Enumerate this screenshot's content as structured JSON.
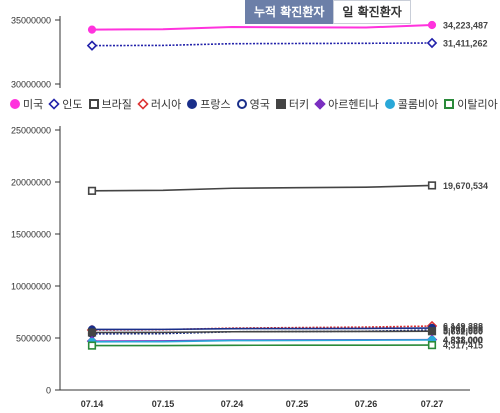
{
  "tabs": [
    {
      "label": "누적 확진환자",
      "active": true
    },
    {
      "label": "일 확진환자",
      "active": false
    }
  ],
  "chart_data": [
    {
      "type": "line",
      "categories": [
        "07.14",
        "07.15",
        "07.24",
        "07.25",
        "07.26",
        "07.27"
      ],
      "ylim": [
        25000000,
        35000000
      ],
      "yticks": [
        "35000000",
        "30000000"
      ],
      "series": [
        {
          "name": "미국",
          "color": "#ff33dd",
          "marker": "circle-filled",
          "values": [
            33500000,
            33560000,
            33900000,
            33850000,
            33820000,
            34223487
          ],
          "end_label": "34,223,487"
        },
        {
          "name": "인도",
          "color": "#2222aa",
          "marker": "diamond-open",
          "values": [
            31000000,
            31030000,
            31300000,
            31330000,
            31360000,
            31411262
          ],
          "end_label": "31,411,262"
        }
      ]
    },
    {
      "type": "line",
      "categories": [
        "07.14",
        "07.15",
        "07.24",
        "07.25",
        "07.26",
        "07.27"
      ],
      "ylim": [
        0,
        25000000
      ],
      "yticks": [
        "25000000",
        "20000000",
        "15000000",
        "10000000",
        "5000000",
        "0"
      ],
      "series": [
        {
          "name": "브라질",
          "color": "#444444",
          "marker": "square-open",
          "values": [
            19150000,
            19200000,
            19400000,
            19450000,
            19500000,
            19670534
          ],
          "end_label": "19,670,534"
        },
        {
          "name": "러시아",
          "color": "#dd3333",
          "marker": "diamond-open",
          "values": [
            5770000,
            5800000,
            5950000,
            6000000,
            6050000,
            6149388
          ],
          "end_label": "6,149,388"
        },
        {
          "name": "프랑스",
          "color": "#1a2f8a",
          "marker": "circle-filled",
          "values": [
            5820000,
            5830000,
            5900000,
            5910000,
            5920000,
            5960000
          ],
          "end_label": "5,961,908"
        },
        {
          "name": "영국",
          "color": "#1a2f8a",
          "marker": "circle-open",
          "values": [
            5400000,
            5420000,
            5600000,
            5620000,
            5650000,
            5770000
          ],
          "end_label": "5,770,928"
        },
        {
          "name": "터키",
          "color": "#444444",
          "marker": "square-filled",
          "values": [
            5530000,
            5540000,
            5600000,
            5620000,
            5630000,
            5652000
          ],
          "end_label": "5,652,000"
        },
        {
          "name": "아르헨티나",
          "color": "#7a2fc0",
          "marker": "diamond-filled",
          "values": [
            4700000,
            4720000,
            4800000,
            4820000,
            4830000,
            4838000
          ],
          "end_label": "4,838,000"
        },
        {
          "name": "콜롬비아",
          "color": "#2aa8d8",
          "marker": "circle-filled",
          "values": [
            4630000,
            4650000,
            4750000,
            4770000,
            4790000,
            4811000
          ],
          "end_label": "4,811,000"
        },
        {
          "name": "이탈리아",
          "color": "#2a8a3a",
          "marker": "square-open",
          "values": [
            4270000,
            4275000,
            4300000,
            4305000,
            4310000,
            4317415
          ],
          "end_label": "4,317,415"
        }
      ]
    }
  ]
}
